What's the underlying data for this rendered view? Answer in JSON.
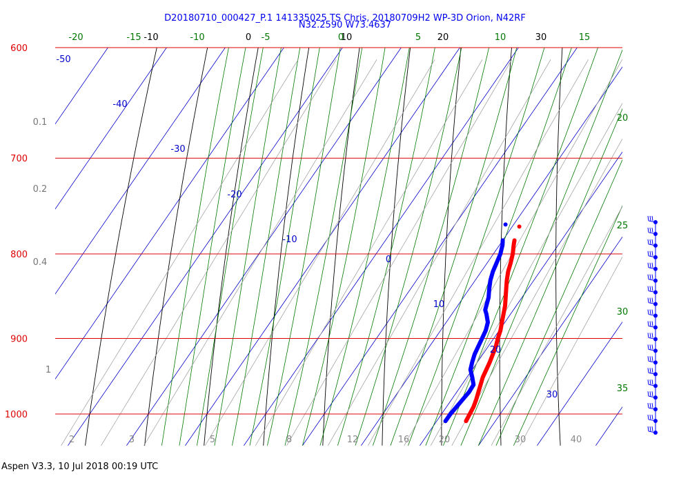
{
  "header": {
    "line1": "D20180710_000427_P.1 141335025 TS Chris, 20180709H2 WP-3D Orion, N42RF",
    "line2": "N32.2590 W73.4637"
  },
  "footer": "Aspen V3.3, 10 Jul 2018  00:19 UTC",
  "colors": {
    "isobar": "#dd0000",
    "isotherm_label": "#0000cc",
    "dry_adiabat": "#000000",
    "moist_adiabat": "#007700",
    "mixing_ratio": "#999999",
    "temperature": "#ff0000",
    "dewpoint": "#0000ff"
  },
  "chart_data": {
    "type": "line",
    "title": "D20180710_000427_P.1 141335025 TS Chris, 20180709H2 WP-3D Orion, N42RF",
    "subtitle": "N32.2590 W73.4637",
    "pressure_range": [
      1045,
      600
    ],
    "log_pressure_axis": true,
    "isobars": [
      600,
      700,
      800,
      900,
      1000
    ],
    "isotherm_labels": [
      -50,
      -40,
      -30,
      -20,
      -10,
      0,
      10,
      20,
      30
    ],
    "dry_adiabat_labels": [
      -10,
      0,
      10,
      20,
      30
    ],
    "moist_adiabat_top_labels": [
      -20,
      -15,
      -10,
      -5,
      0,
      5,
      10,
      15
    ],
    "moist_adiabat_right_labels": [
      20,
      25,
      30,
      35
    ],
    "mixing_ratio_labels": [
      0.1,
      0.2,
      0.4,
      1
    ],
    "bottom_axis_labels": [
      2,
      3,
      5,
      8,
      12,
      16,
      20,
      30,
      40
    ],
    "series": [
      {
        "role": "temperature",
        "points": [
          {
            "p": 1010,
            "t": 25.0
          },
          {
            "p": 1000,
            "t": 24.8
          },
          {
            "p": 990,
            "t": 24.6
          },
          {
            "p": 980,
            "t": 24.2
          },
          {
            "p": 970,
            "t": 23.7
          },
          {
            "p": 960,
            "t": 23.2
          },
          {
            "p": 950,
            "t": 22.7
          },
          {
            "p": 940,
            "t": 22.4
          },
          {
            "p": 930,
            "t": 22.1
          },
          {
            "p": 920,
            "t": 21.7
          },
          {
            "p": 910,
            "t": 21.3
          },
          {
            "p": 900,
            "t": 20.7
          },
          {
            "p": 890,
            "t": 20.2
          },
          {
            "p": 880,
            "t": 19.5
          },
          {
            "p": 870,
            "t": 18.8
          },
          {
            "p": 860,
            "t": 18.1
          },
          {
            "p": 850,
            "t": 17.2
          },
          {
            "p": 840,
            "t": 16.3
          },
          {
            "p": 830,
            "t": 15.4
          },
          {
            "p": 820,
            "t": 14.6
          },
          {
            "p": 810,
            "t": 14.0
          },
          {
            "p": 800,
            "t": 13.3
          },
          {
            "p": 790,
            "t": 12.4
          },
          {
            "p": 785,
            "t": 12.0
          }
        ]
      },
      {
        "role": "dewpoint",
        "points": [
          {
            "p": 1010,
            "t": 21.5
          },
          {
            "p": 1000,
            "t": 21.5
          },
          {
            "p": 990,
            "t": 21.7
          },
          {
            "p": 980,
            "t": 21.9
          },
          {
            "p": 970,
            "t": 22.1
          },
          {
            "p": 960,
            "t": 22.0
          },
          {
            "p": 950,
            "t": 20.9
          },
          {
            "p": 940,
            "t": 19.7
          },
          {
            "p": 930,
            "t": 19.1
          },
          {
            "p": 920,
            "t": 18.6
          },
          {
            "p": 910,
            "t": 18.3
          },
          {
            "p": 900,
            "t": 18.0
          },
          {
            "p": 890,
            "t": 17.7
          },
          {
            "p": 880,
            "t": 17.1
          },
          {
            "p": 870,
            "t": 15.9
          },
          {
            "p": 865,
            "t": 15.2
          },
          {
            "p": 860,
            "t": 14.9
          },
          {
            "p": 850,
            "t": 14.3
          },
          {
            "p": 840,
            "t": 13.4
          },
          {
            "p": 830,
            "t": 12.6
          },
          {
            "p": 820,
            "t": 12.0
          },
          {
            "p": 810,
            "t": 11.6
          },
          {
            "p": 800,
            "t": 11.2
          },
          {
            "p": 790,
            "t": 10.5
          },
          {
            "p": 785,
            "t": 10.0
          }
        ]
      }
    ],
    "wind_barb_count": 19
  }
}
